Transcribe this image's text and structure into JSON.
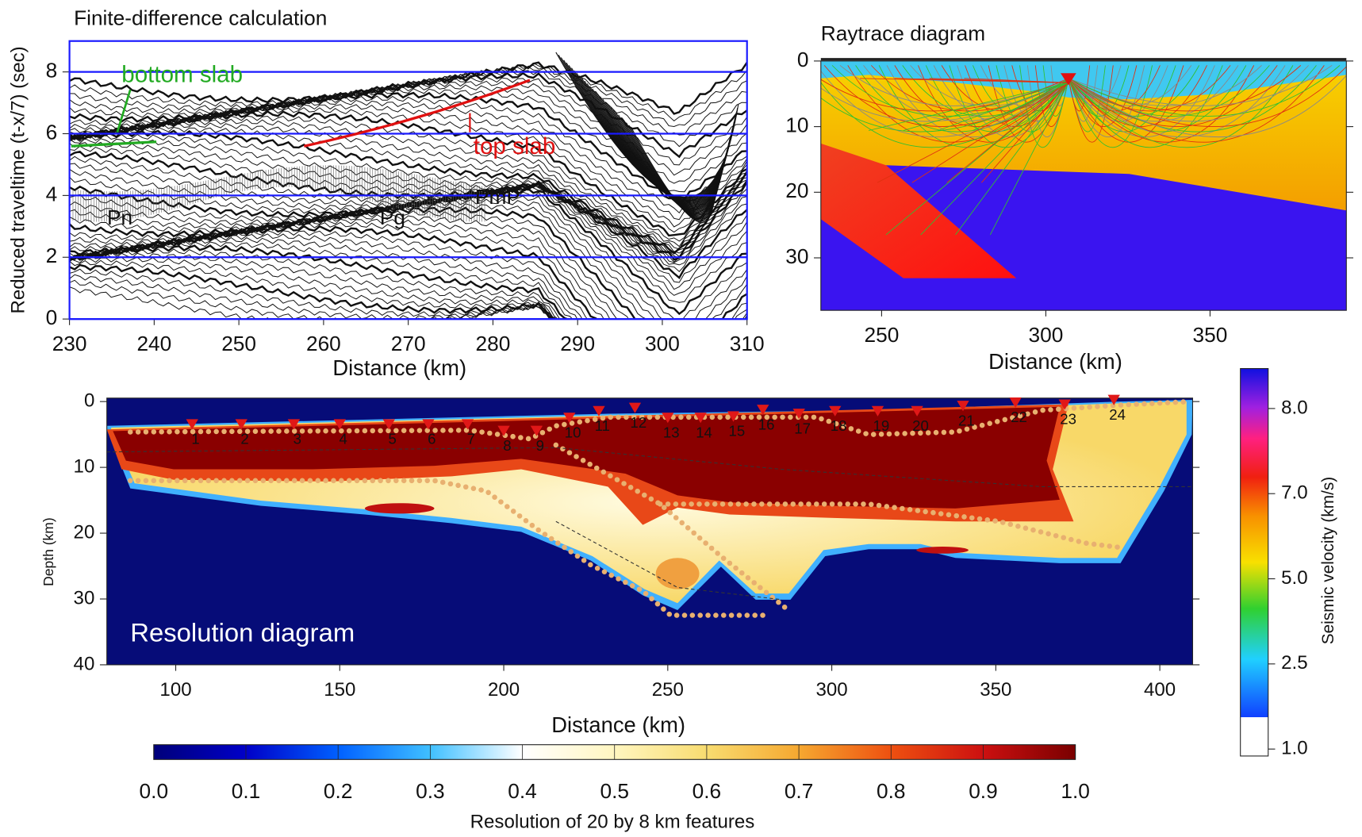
{
  "chart_data": [
    {
      "type": "seismogram",
      "title": "Finite-difference calculation",
      "x_label": "Distance (km)",
      "y_label": "Reduced traveltime (t-x/7) (sec)",
      "xlim": [
        230,
        310
      ],
      "xticks": [
        230,
        240,
        250,
        260,
        270,
        280,
        290,
        300,
        310
      ],
      "ylim": [
        0,
        9
      ],
      "yticks": [
        0,
        2,
        4,
        6,
        8
      ],
      "grid": true,
      "grid_color": "#1a1aff",
      "annotations": [
        {
          "text": "bottom slab",
          "color": "#22aa22"
        },
        {
          "text": "top slab",
          "color": "#e01010"
        },
        {
          "text": "Pn"
        },
        {
          "text": "Pg"
        },
        {
          "text": "PmP"
        }
      ]
    },
    {
      "type": "raytrace",
      "title": "Raytrace diagram",
      "x_label": "Distance (km)",
      "xlim": [
        231.5,
        391.5
      ],
      "xticks": [
        250,
        300,
        350
      ],
      "ylim": [
        0,
        38
      ],
      "yticks": [
        0,
        10,
        20,
        30
      ],
      "y_inverted": true
    },
    {
      "type": "resolution-map",
      "title": "Resolution diagram",
      "x_label": "Distance (km)",
      "y_label": "Depth (km)",
      "xlim": [
        79,
        410
      ],
      "xticks": [
        100,
        150,
        200,
        250,
        300,
        350,
        400
      ],
      "ylim": [
        0,
        40
      ],
      "yticks": [
        0,
        10,
        20,
        30,
        40
      ],
      "y_inverted": true,
      "stations": {
        "labels": [
          "1",
          "2",
          "3",
          "4",
          "5",
          "6",
          "7",
          "8",
          "9",
          "10",
          "11",
          "12",
          "13",
          "14",
          "15",
          "16",
          "17",
          "18",
          "19",
          "20",
          "21",
          "22",
          "23",
          "24"
        ],
        "x": [
          105,
          120,
          136,
          150,
          165,
          177,
          189,
          200,
          210,
          220,
          229,
          240,
          250,
          260,
          270,
          279,
          290,
          301,
          314,
          326,
          340,
          356,
          371,
          386
        ],
        "depth": [
          4,
          4,
          4,
          4,
          4,
          4,
          4,
          5,
          5,
          3,
          2,
          1.5,
          3,
          3,
          2.8,
          1.8,
          2.4,
          2,
          2,
          2,
          1.2,
          0.7,
          1,
          0.3
        ],
        "color": "#e01818"
      }
    },
    {
      "type": "colorbar",
      "label": "Resolution of 20 by 8 km features",
      "xlim": [
        0,
        1
      ],
      "xticks": [
        {
          "value": 0,
          "label": "0.0"
        },
        0.1,
        0.2,
        0.3,
        0.4,
        0.5,
        0.6,
        0.7,
        0.8,
        0.9,
        {
          "value": 1,
          "label": "1.0"
        }
      ]
    },
    {
      "type": "colorbar",
      "orientation": "vertical",
      "label": "Seismic velocity (km/s)",
      "categories": [
        "1.0",
        "2.5",
        "5.0",
        "7.0",
        "8.0"
      ]
    }
  ]
}
